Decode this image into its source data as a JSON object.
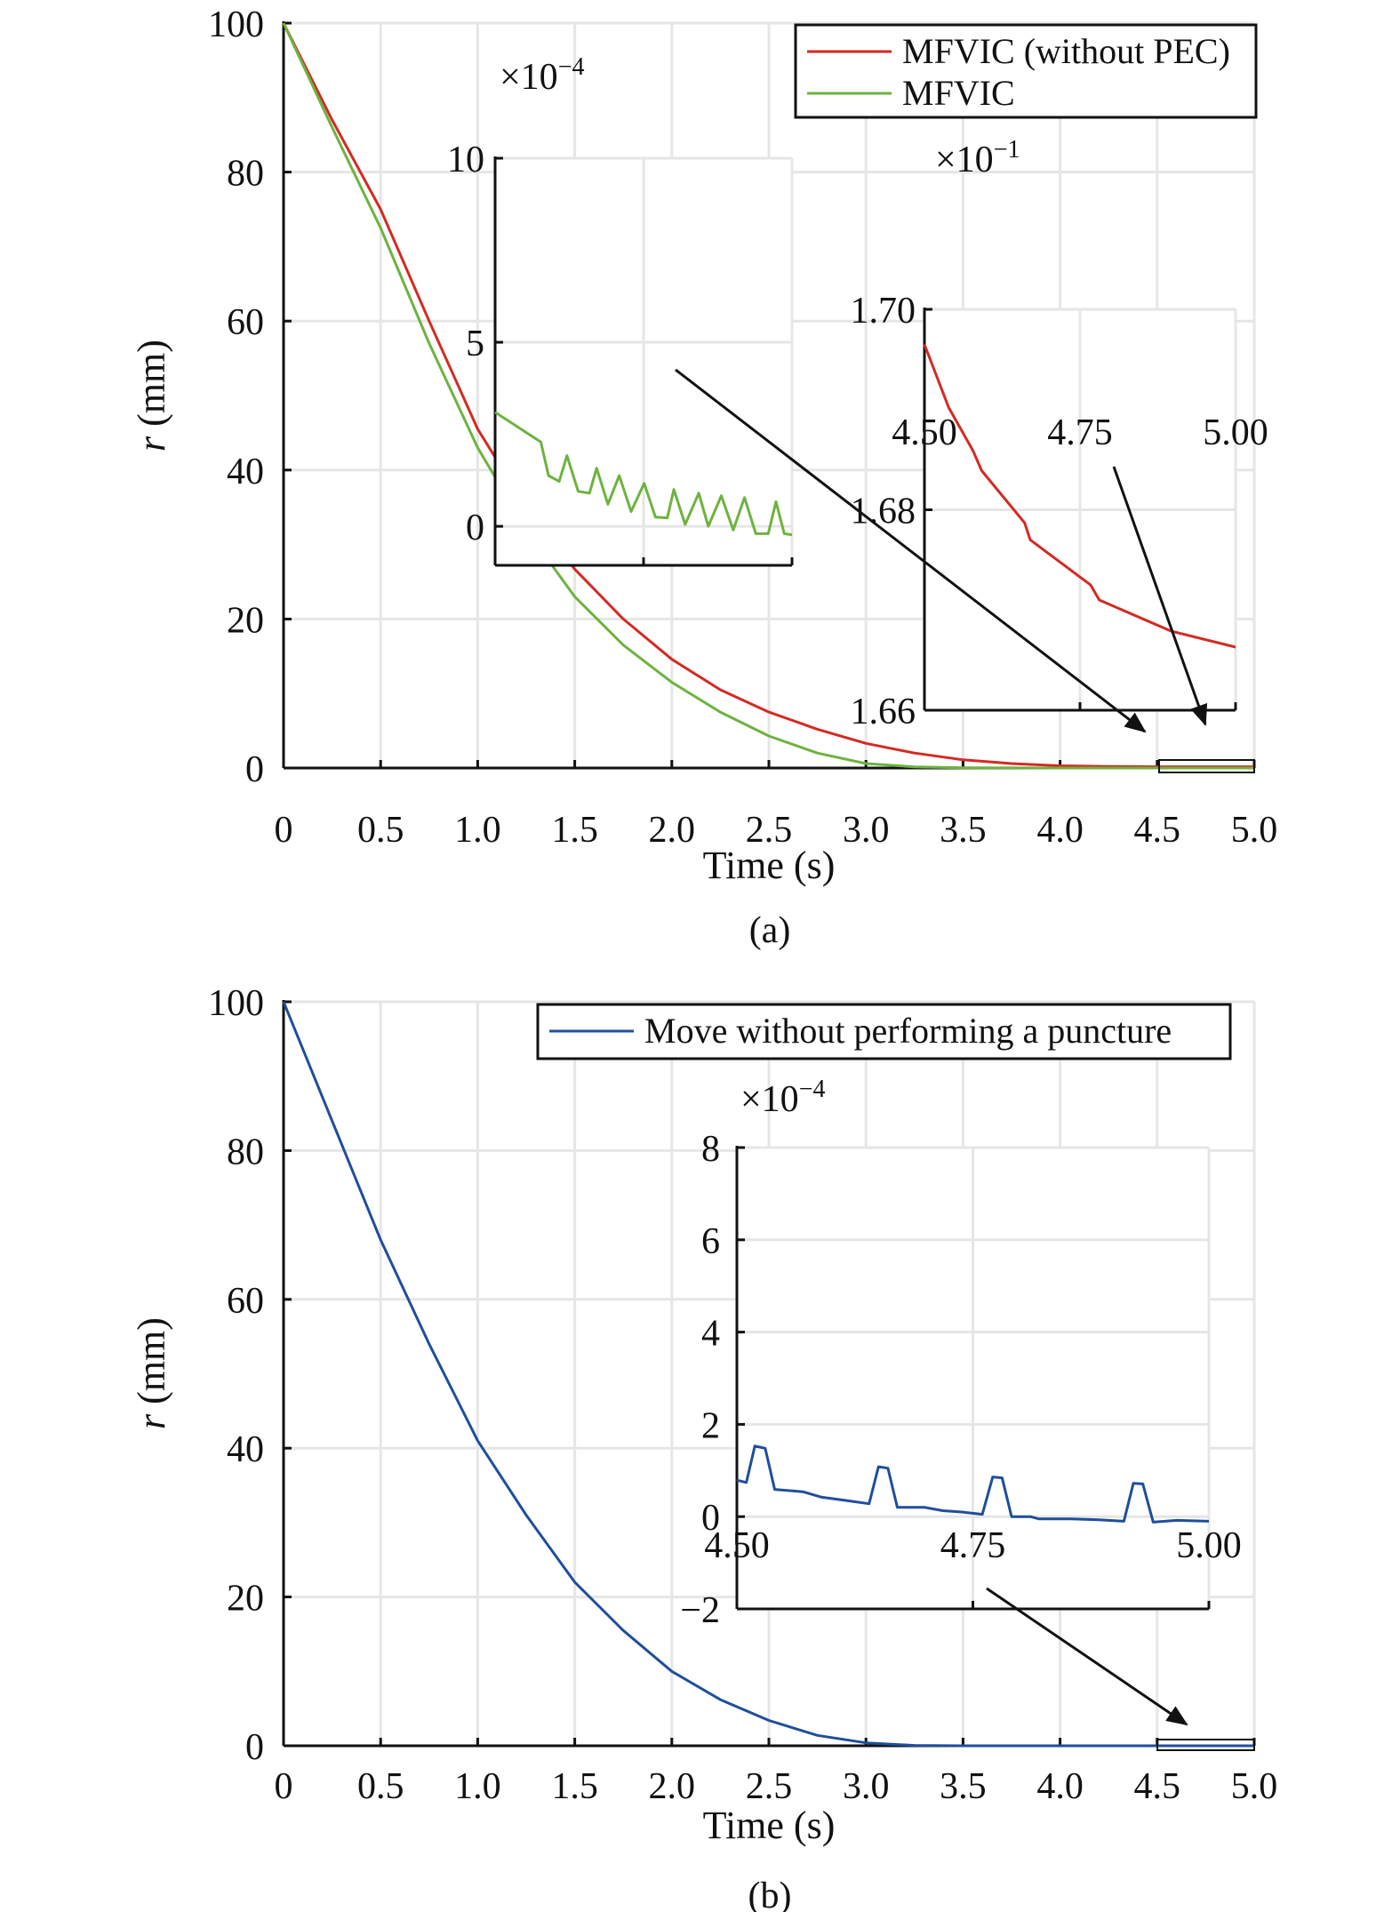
{
  "panels": {
    "a": "(a)",
    "b": "(b)"
  },
  "colors": {
    "red": "#d42a22",
    "green": "#6db33f",
    "blue": "#1f4e9c",
    "grid": "#e6e6e6",
    "axis": "#111111"
  },
  "legends": {
    "a": [
      "MFVIC (without PEC)",
      "MFVIC"
    ],
    "b": [
      "Move without performing a puncture"
    ]
  },
  "chart_data": [
    {
      "id": "main-a",
      "type": "line",
      "xlabel": "Time (s)",
      "ylabel_var": "r",
      "ylabel_unit": " (mm)",
      "xlim": [
        0,
        5
      ],
      "ylim": [
        0,
        100
      ],
      "grid": true,
      "legend": "top-right",
      "xticks": [
        0,
        0.5,
        1,
        1.5,
        2,
        2.5,
        3,
        3.5,
        4,
        4.5,
        5
      ],
      "xticklabels": [
        "0",
        "0.5",
        "1.0",
        "1.5",
        "2.0",
        "2.5",
        "3.0",
        "3.5",
        "4.0",
        "4.5",
        "5.0"
      ],
      "yticks": [
        0,
        20,
        40,
        60,
        80,
        100
      ],
      "yticklabels": [
        "0",
        "20",
        "40",
        "60",
        "80",
        "100"
      ],
      "series": [
        {
          "name": "MFVIC (without PEC)",
          "color": "red",
          "x": [
            0,
            0.25,
            0.5,
            0.75,
            1,
            1.25,
            1.5,
            1.75,
            2,
            2.25,
            2.5,
            2.75,
            3,
            3.25,
            3.5,
            3.75,
            4,
            4.25,
            4.5,
            5
          ],
          "y": [
            100,
            87,
            75,
            60,
            45.5,
            35,
            26.7,
            20,
            14.6,
            10.5,
            7.5,
            5.2,
            3.3,
            2.0,
            1.1,
            0.6,
            0.3,
            0.2,
            0.17,
            0.167
          ]
        },
        {
          "name": "MFVIC",
          "color": "green",
          "x": [
            0,
            0.25,
            0.5,
            0.75,
            1,
            1.25,
            1.5,
            1.75,
            2,
            2.25,
            2.5,
            2.75,
            3,
            3.25,
            3.5,
            4,
            5
          ],
          "y": [
            100,
            86,
            72.5,
            57,
            43,
            32,
            23,
            16.5,
            11.5,
            7.5,
            4.3,
            2.0,
            0.6,
            0.15,
            0.02,
            0,
            0
          ]
        }
      ]
    },
    {
      "id": "inset-a-green",
      "type": "line",
      "xlim": [
        4.5,
        5
      ],
      "ylim": [
        -1.06,
        10
      ],
      "grid": true,
      "exp_base": "×10",
      "exp_power": "−4",
      "xticks": [
        4.5,
        4.75,
        5
      ],
      "xticklabels": [],
      "yticks": [
        0,
        5,
        10
      ],
      "yticklabels": [
        "0",
        "5",
        "10"
      ],
      "series": [
        {
          "name": "MFVIC",
          "color": "green",
          "x": [
            4.5,
            4.577,
            4.59,
            4.608,
            4.621,
            4.64,
            4.659,
            4.671,
            4.69,
            4.709,
            4.729,
            4.751,
            4.77,
            4.79,
            4.801,
            4.82,
            4.843,
            4.859,
            4.881,
            4.901,
            4.92,
            4.939,
            4.96,
            4.973,
            4.987,
            5.0
          ],
          "y": [
            3.1,
            2.29,
            1.38,
            1.22,
            1.92,
            0.95,
            0.9,
            1.58,
            0.6,
            1.38,
            0.4,
            1.17,
            0.25,
            0.23,
            1.0,
            0.05,
            0.9,
            0,
            0.83,
            -0.1,
            0.78,
            -0.2,
            -0.2,
            0.67,
            -0.2,
            -0.23
          ]
        }
      ]
    },
    {
      "id": "inset-a-red",
      "type": "line",
      "xlim": [
        4.5,
        5
      ],
      "ylim": [
        1.66,
        1.7
      ],
      "grid": true,
      "exp_base": "×10",
      "exp_power": "−1",
      "xticks": [
        4.5,
        4.75,
        5
      ],
      "xticklabels": [
        "4.50",
        "4.75",
        "5.00"
      ],
      "yticks": [
        1.66,
        1.68,
        1.7
      ],
      "yticklabels": [
        "1.66",
        "1.68",
        "1.70"
      ],
      "series": [
        {
          "name": "MFVIC (without PEC)",
          "color": "red",
          "x": [
            4.5,
            4.539,
            4.578,
            4.592,
            4.661,
            4.67,
            4.767,
            4.781,
            4.896,
            5.0
          ],
          "y": [
            1.6965,
            1.6902,
            1.6859,
            1.6839,
            1.6787,
            1.677,
            1.6725,
            1.671,
            1.6679,
            1.6663
          ]
        }
      ]
    },
    {
      "id": "main-b",
      "type": "line",
      "xlabel": "Time (s)",
      "ylabel_var": "r",
      "ylabel_unit": " (mm)",
      "xlim": [
        0,
        5
      ],
      "ylim": [
        0,
        100
      ],
      "grid": true,
      "legend": "top-right",
      "xticks": [
        0,
        0.5,
        1,
        1.5,
        2,
        2.5,
        3,
        3.5,
        4,
        4.5,
        5
      ],
      "xticklabels": [
        "0",
        "0.5",
        "1.0",
        "1.5",
        "2.0",
        "2.5",
        "3.0",
        "3.5",
        "4.0",
        "4.5",
        "5.0"
      ],
      "yticks": [
        0,
        20,
        40,
        60,
        80,
        100
      ],
      "yticklabels": [
        "0",
        "20",
        "40",
        "60",
        "80",
        "100"
      ],
      "series": [
        {
          "name": "Move without performing a puncture",
          "color": "blue",
          "x": [
            0,
            0.25,
            0.5,
            0.75,
            1,
            1.25,
            1.5,
            1.75,
            2,
            2.25,
            2.5,
            2.75,
            3,
            3.25,
            3.5,
            4,
            5
          ],
          "y": [
            100,
            84,
            68,
            54,
            41,
            31,
            22,
            15.5,
            10,
            6.2,
            3.4,
            1.4,
            0.4,
            0.05,
            0,
            0,
            0
          ]
        }
      ]
    },
    {
      "id": "inset-b-blue",
      "type": "line",
      "xlim": [
        4.5,
        5
      ],
      "ylim": [
        -2,
        8
      ],
      "grid": true,
      "exp_base": "×10",
      "exp_power": "−4",
      "xticks": [
        4.5,
        4.75,
        5
      ],
      "xticklabels": [
        "4.50",
        "4.75",
        "5.00"
      ],
      "yticks": [
        -2,
        0,
        2,
        4,
        6,
        8
      ],
      "yticklabels": [
        "−2",
        "0",
        "2",
        "4",
        "6",
        "8"
      ],
      "series": [
        {
          "name": "Move without performing a puncture",
          "color": "blue",
          "x": [
            4.5,
            4.51,
            4.519,
            4.53,
            4.54,
            4.57,
            4.59,
            4.612,
            4.64,
            4.65,
            4.66,
            4.67,
            4.699,
            4.718,
            4.738,
            4.76,
            4.771,
            4.781,
            4.791,
            4.811,
            4.82,
            4.854,
            4.883,
            4.91,
            4.92,
            4.93,
            4.941,
            4.966,
            5.0
          ],
          "y": [
            0.79,
            0.74,
            1.53,
            1.48,
            0.59,
            0.54,
            0.42,
            0.36,
            0.28,
            1.08,
            1.05,
            0.2,
            0.2,
            0.13,
            0.1,
            0.05,
            0.86,
            0.84,
            0,
            0,
            -0.05,
            -0.05,
            -0.07,
            -0.1,
            0.72,
            0.71,
            -0.12,
            -0.08,
            -0.1
          ]
        }
      ]
    }
  ]
}
